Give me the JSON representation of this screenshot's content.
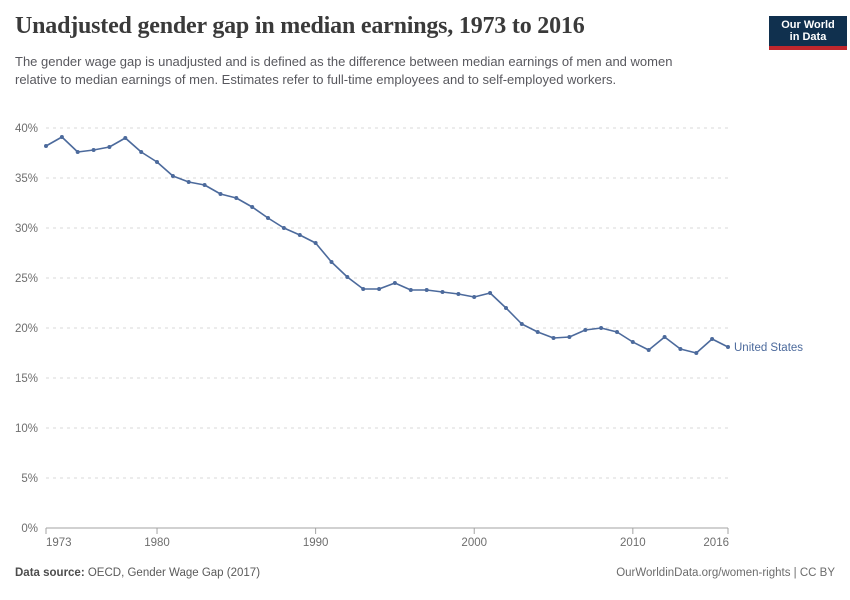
{
  "header": {
    "title": "Unadjusted gender gap in median earnings, 1973 to 2016",
    "subtitle": "The gender wage gap is unadjusted and is defined as the difference between median earnings of men and women relative to median earnings of men. Estimates refer to full-time employees and to self-employed workers.",
    "logo": {
      "line1": "Our World",
      "line2": "in Data"
    }
  },
  "chart_data": {
    "type": "line",
    "title": "Unadjusted gender gap in median earnings, 1973 to 2016",
    "x": [
      1973,
      1974,
      1975,
      1976,
      1977,
      1978,
      1979,
      1980,
      1981,
      1982,
      1983,
      1984,
      1985,
      1986,
      1987,
      1988,
      1989,
      1990,
      1991,
      1992,
      1993,
      1994,
      1995,
      1996,
      1997,
      1998,
      1999,
      2000,
      2001,
      2002,
      2003,
      2004,
      2005,
      2006,
      2007,
      2008,
      2009,
      2010,
      2011,
      2012,
      2013,
      2014,
      2015,
      2016
    ],
    "series": [
      {
        "name": "United States",
        "color": "#4C6A9C",
        "values": [
          38.2,
          39.1,
          37.6,
          37.8,
          38.1,
          39.0,
          37.6,
          36.6,
          35.2,
          34.6,
          34.3,
          33.4,
          33.0,
          32.1,
          31.0,
          30.0,
          29.3,
          28.5,
          26.6,
          25.1,
          23.9,
          23.9,
          24.5,
          23.8,
          23.8,
          23.6,
          23.4,
          23.1,
          23.5,
          22.0,
          20.4,
          19.6,
          19.0,
          19.1,
          19.8,
          20.0,
          19.6,
          18.6,
          17.8,
          19.1,
          17.9,
          17.5,
          18.9,
          18.1
        ]
      }
    ],
    "xlabel": "",
    "ylabel": "",
    "ylim": [
      0,
      40
    ],
    "yticks": [
      0,
      5,
      10,
      15,
      20,
      25,
      30,
      35,
      40
    ],
    "ytick_suffix": "%",
    "xticks": [
      1973,
      1980,
      1990,
      2000,
      2010,
      2016
    ],
    "grid": "horizontal-dashed",
    "legend_position": "end-of-line-label",
    "unit": "%"
  },
  "footer": {
    "source_label": "Data source:",
    "source_text": " OECD, Gender Wage Gap (2017)",
    "credit": "OurWorldinData.org/women-rights | CC BY"
  },
  "colors": {
    "line": "#4C6A9C",
    "entity_label": "#4C6A9C",
    "gridline": "#d9d9d9",
    "axis": "#a3a3a3",
    "tick_label": "#6e6e6e",
    "title": "#3a3a3a",
    "subtitle": "#58585e",
    "logo_bg": "#10304e",
    "logo_accent": "#c0272d"
  }
}
